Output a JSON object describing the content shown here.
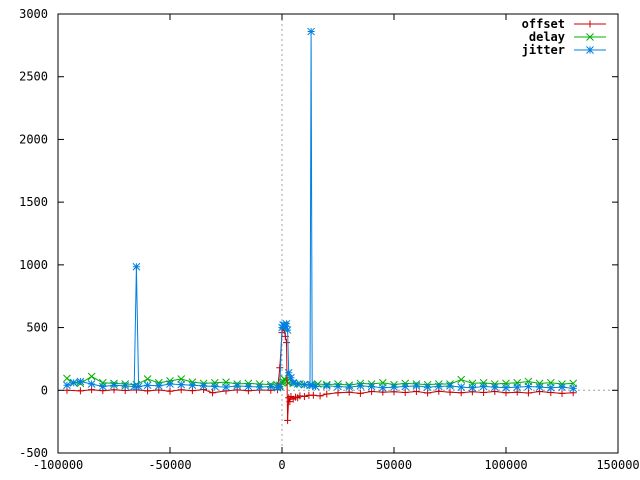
{
  "chart_data": {
    "type": "line",
    "title": "",
    "xlabel": "",
    "ylabel": "",
    "xlim": [
      -100000,
      150000
    ],
    "ylim": [
      -500,
      3000
    ],
    "xticks": [
      -100000,
      -50000,
      0,
      50000,
      100000,
      150000
    ],
    "yticks": [
      -500,
      0,
      500,
      1000,
      1500,
      2000,
      2500,
      3000
    ],
    "grid": false,
    "zero_axes": true,
    "legend_position": "top-right",
    "series": [
      {
        "name": "offset",
        "color": "#cc0000",
        "marker": "plus",
        "x": [
          -96000,
          -90000,
          -85000,
          -80000,
          -75000,
          -70000,
          -65000,
          -60000,
          -55000,
          -50000,
          -45000,
          -40000,
          -35000,
          -31000,
          -25000,
          -20000,
          -15000,
          -10000,
          -5000,
          -2000,
          -1000,
          0,
          500,
          1000,
          1500,
          2000,
          2500,
          3000,
          3500,
          4000,
          5000,
          6000,
          7000,
          8000,
          10000,
          12000,
          14000,
          17000,
          20000,
          25000,
          30000,
          35000,
          40000,
          45000,
          50000,
          55000,
          60000,
          65000,
          70000,
          75000,
          80000,
          85000,
          90000,
          95000,
          100000,
          105000,
          110000,
          115000,
          120000,
          125000,
          130000
        ],
        "y": [
          0,
          -5,
          5,
          -3,
          4,
          -2,
          3,
          -5,
          2,
          -8,
          4,
          -3,
          6,
          -20,
          -5,
          3,
          -4,
          2,
          0,
          5,
          180,
          460,
          500,
          480,
          430,
          380,
          -240,
          -60,
          -90,
          -50,
          -70,
          -55,
          -60,
          -45,
          -50,
          -40,
          -40,
          -45,
          -30,
          -20,
          -15,
          -25,
          -10,
          -15,
          -12,
          -18,
          -10,
          -22,
          -8,
          -15,
          -20,
          -12,
          -18,
          -10,
          -20,
          -15,
          -22,
          -10,
          -18,
          -25,
          -20
        ]
      },
      {
        "name": "delay",
        "color": "#00b000",
        "marker": "cross",
        "x": [
          -96000,
          -93000,
          -90000,
          -85000,
          -80000,
          -75000,
          -70000,
          -65000,
          -60000,
          -55000,
          -50000,
          -45000,
          -40000,
          -35000,
          -30000,
          -25000,
          -20000,
          -15000,
          -10000,
          -5000,
          -2000,
          -1000,
          0,
          500,
          1000,
          1500,
          2000,
          3000,
          5000,
          8000,
          10000,
          13000,
          16000,
          20000,
          25000,
          30000,
          35000,
          40000,
          45000,
          50000,
          55000,
          60000,
          65000,
          70000,
          75000,
          80000,
          85000,
          90000,
          95000,
          100000,
          105000,
          110000,
          115000,
          120000,
          125000,
          130000
        ],
        "y": [
          95,
          60,
          55,
          110,
          60,
          55,
          50,
          45,
          90,
          60,
          75,
          90,
          65,
          55,
          60,
          65,
          50,
          55,
          50,
          45,
          40,
          40,
          60,
          70,
          90,
          80,
          70,
          60,
          55,
          50,
          45,
          45,
          50,
          45,
          50,
          40,
          55,
          50,
          60,
          45,
          55,
          50,
          45,
          50,
          50,
          85,
          55,
          60,
          50,
          55,
          60,
          70,
          55,
          60,
          50,
          55
        ]
      },
      {
        "name": "jitter",
        "color": "#0080e0",
        "marker": "star",
        "x": [
          -96000,
          -93000,
          -90000,
          -85000,
          -80000,
          -75000,
          -70000,
          -66000,
          -65000,
          -64000,
          -60000,
          -55000,
          -50000,
          -45000,
          -40000,
          -35000,
          -30000,
          -25000,
          -20000,
          -15000,
          -10000,
          -5000,
          -2000,
          -1000,
          0,
          500,
          1000,
          1500,
          2000,
          2500,
          3000,
          4000,
          5000,
          7000,
          10000,
          12500,
          13000,
          13500,
          15000,
          20000,
          25000,
          30000,
          35000,
          40000,
          45000,
          50000,
          55000,
          60000,
          65000,
          70000,
          75000,
          80000,
          85000,
          90000,
          95000,
          100000,
          105000,
          110000,
          115000,
          120000,
          125000,
          130000
        ],
        "y": [
          40,
          60,
          70,
          50,
          30,
          40,
          35,
          30,
          985,
          30,
          40,
          35,
          50,
          45,
          40,
          35,
          30,
          25,
          35,
          30,
          25,
          30,
          20,
          30,
          500,
          520,
          520,
          510,
          530,
          480,
          140,
          100,
          60,
          50,
          45,
          40,
          2860,
          40,
          30,
          35,
          30,
          25,
          35,
          30,
          20,
          25,
          30,
          35,
          25,
          30,
          35,
          25,
          20,
          30,
          25,
          20,
          25,
          30,
          25,
          20,
          25,
          15
        ]
      }
    ]
  }
}
